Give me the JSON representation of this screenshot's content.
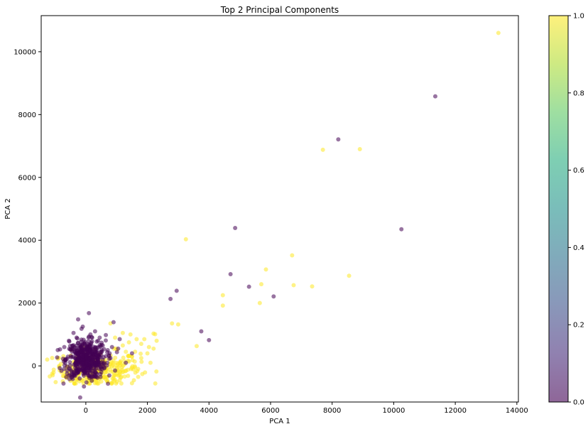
{
  "chart_data": {
    "type": "scatter",
    "title": "Top 2 Principal Components",
    "xlabel": "PCA 1",
    "ylabel": "PCA 2",
    "xlim": [
      -1450,
      14050
    ],
    "ylim": [
      -1150,
      11150
    ],
    "xticks": [
      0,
      2000,
      4000,
      6000,
      8000,
      10000,
      12000,
      14000
    ],
    "xtick_labels": [
      "0",
      "2000",
      "4000",
      "6000",
      "8000",
      "10000",
      "12000",
      "14000"
    ],
    "yticks": [
      0,
      2000,
      4000,
      6000,
      8000,
      10000
    ],
    "ytick_labels": [
      "0",
      "2000",
      "4000",
      "6000",
      "8000",
      "10000"
    ],
    "grid": false,
    "marker_alpha": 0.55,
    "colormap": "viridis",
    "colorbar": {
      "range": [
        0.0,
        1.0
      ],
      "ticks": [
        0.0,
        0.2,
        0.4,
        0.6,
        0.8,
        1.0
      ],
      "tick_labels": [
        "0.0",
        "0.2",
        "0.4",
        "0.6",
        "0.8",
        "1.0"
      ]
    },
    "series": [
      {
        "class_value": 1.0,
        "color": "#fde725",
        "points": [
          [
            13400,
            10600
          ],
          [
            8900,
            6900
          ],
          [
            7700,
            6880
          ],
          [
            3250,
            4030
          ],
          [
            6700,
            3520
          ],
          [
            5850,
            3070
          ],
          [
            8550,
            2870
          ],
          [
            5700,
            2600
          ],
          [
            6750,
            2570
          ],
          [
            7350,
            2530
          ],
          [
            4450,
            2250
          ],
          [
            5650,
            2000
          ],
          [
            4450,
            1920
          ],
          [
            2800,
            1350
          ],
          [
            3000,
            1320
          ],
          [
            3600,
            630
          ],
          [
            2200,
            1030
          ],
          [
            2250,
            1010
          ],
          [
            2050,
            600
          ],
          [
            2200,
            550
          ],
          [
            1650,
            850
          ],
          [
            1900,
            850
          ],
          [
            1450,
            1000
          ],
          [
            1800,
            700
          ],
          [
            1600,
            450
          ],
          [
            2000,
            400
          ],
          [
            1200,
            650
          ],
          [
            1500,
            300
          ],
          [
            1250,
            150
          ],
          [
            1800,
            250
          ],
          [
            2100,
            100
          ],
          [
            1600,
            -50
          ],
          [
            1300,
            -150
          ],
          [
            1000,
            -250
          ],
          [
            1700,
            -350
          ],
          [
            900,
            -400
          ],
          [
            1100,
            -450
          ],
          [
            700,
            -500
          ],
          [
            300,
            -550
          ],
          [
            500,
            -500
          ],
          [
            -100,
            -480
          ],
          [
            200,
            -450
          ],
          [
            -300,
            -400
          ],
          [
            -600,
            -300
          ],
          [
            -500,
            -350
          ],
          [
            800,
            1350
          ],
          [
            1200,
            1050
          ],
          [
            950,
            900
          ],
          [
            1400,
            750
          ],
          [
            2300,
            800
          ],
          [
            1700,
            -100
          ],
          [
            600,
            -350
          ],
          [
            1000,
            100
          ],
          [
            1300,
            450
          ]
        ]
      },
      {
        "class_value": 0.0,
        "color": "#440154",
        "points": [
          [
            11350,
            8580
          ],
          [
            8200,
            7210
          ],
          [
            10250,
            4350
          ],
          [
            4850,
            4390
          ],
          [
            4700,
            2920
          ],
          [
            5300,
            2520
          ],
          [
            6100,
            2210
          ],
          [
            2950,
            2390
          ],
          [
            2750,
            2130
          ],
          [
            3750,
            1100
          ],
          [
            4000,
            820
          ],
          [
            100,
            1680
          ],
          [
            -250,
            1480
          ],
          [
            900,
            1390
          ],
          [
            -100,
            1250
          ],
          [
            650,
            980
          ],
          [
            450,
            900
          ],
          [
            850,
            600
          ],
          [
            1050,
            550
          ],
          [
            1500,
            400
          ],
          [
            800,
            250
          ],
          [
            -400,
            1050
          ],
          [
            -700,
            600
          ],
          [
            -650,
            200
          ],
          [
            -600,
            -150
          ],
          [
            -500,
            -300
          ],
          [
            -200,
            -400
          ],
          [
            200,
            -350
          ],
          [
            500,
            -200
          ],
          [
            700,
            100
          ],
          [
            1100,
            850
          ],
          [
            -100,
            700
          ],
          [
            300,
            1100
          ],
          [
            600,
            -50
          ],
          [
            -300,
            900
          ],
          [
            400,
            800
          ],
          [
            1300,
            100
          ],
          [
            950,
            -150
          ],
          [
            -550,
            800
          ],
          [
            150,
            1000
          ],
          [
            -350,
            -250
          ],
          [
            550,
            650
          ]
        ]
      }
    ],
    "dense_clusters": [
      {
        "class_value": 1.0,
        "color": "#fde725",
        "center": [
          350,
          -100
        ],
        "spread": [
          700,
          280
        ],
        "count": 300
      },
      {
        "class_value": 0.0,
        "color": "#440154",
        "center": [
          0,
          200
        ],
        "spread": [
          320,
          300
        ],
        "count": 500
      }
    ]
  }
}
